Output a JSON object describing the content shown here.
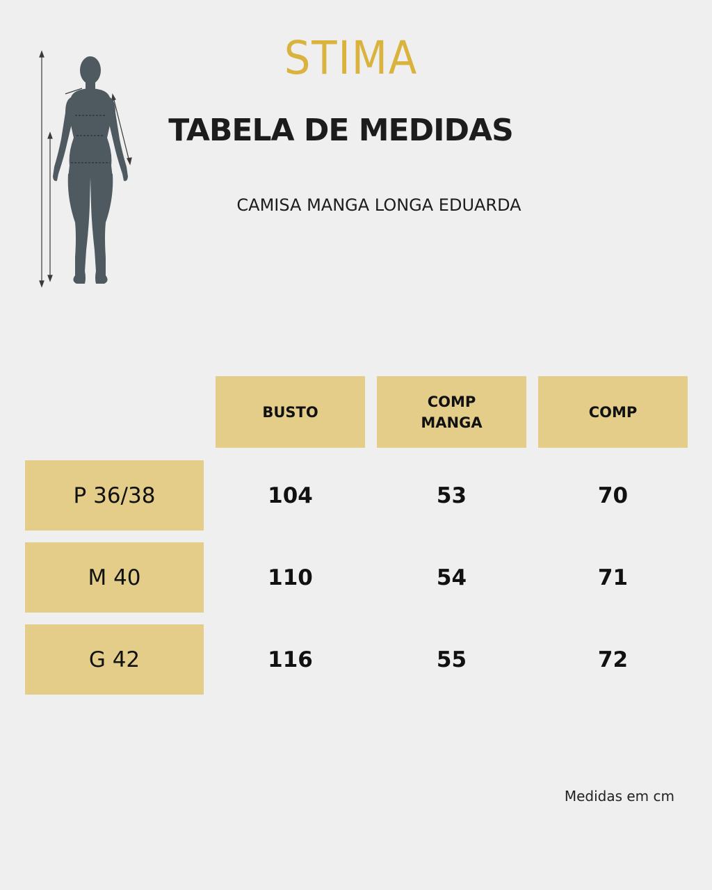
{
  "brand": {
    "logo_text": "STIMA",
    "logo_color": "#d9b33d"
  },
  "header": {
    "title": "TABELA DE MEDIDAS",
    "product_name": "CAMISA MANGA LONGA EDUARDA"
  },
  "illustration": {
    "icon": "body-measurement-figure-icon",
    "color": "#4e5a60"
  },
  "table": {
    "header_color": "#e3cd89",
    "columns": [
      "BUSTO",
      "COMP\nMANGA",
      "COMP"
    ],
    "rows": [
      {
        "size": "P 36/38",
        "values": [
          "104",
          "53",
          "70"
        ]
      },
      {
        "size": "M 40",
        "values": [
          "110",
          "54",
          "71"
        ]
      },
      {
        "size": "G 42",
        "values": [
          "116",
          "55",
          "72"
        ]
      }
    ]
  },
  "footer": {
    "note": "Medidas em cm"
  }
}
